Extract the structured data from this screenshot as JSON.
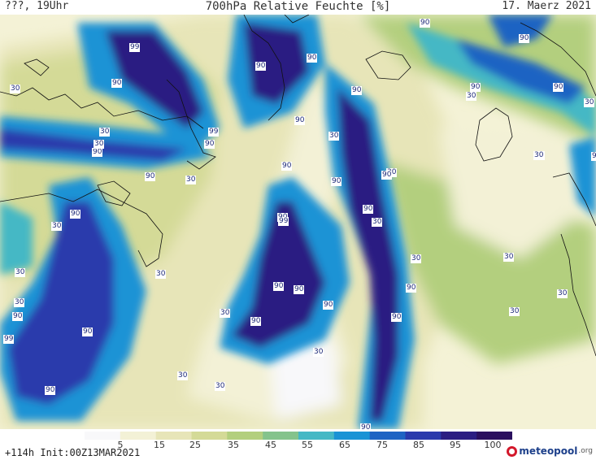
{
  "header": {
    "left": "???, 19Uhr",
    "title": "700hPa Relative Feuchte [%]",
    "date": "17. Maerz 2021"
  },
  "colors": {
    "background": "#f4f2d6",
    "levels": [
      "#f8f8fa",
      "#f3f1d6",
      "#e7e5b8",
      "#d4da97",
      "#b3cf7e",
      "#84c38c",
      "#45b8c5",
      "#1a93d5",
      "#1e63c3",
      "#2a3aac",
      "#2b1d82",
      "#2a0f5e"
    ],
    "coastline": "#111111",
    "label_text": "#1e2a78"
  },
  "colorbar": {
    "ticks": [
      "5",
      "15",
      "25",
      "35",
      "45",
      "55",
      "65",
      "75",
      "85",
      "95",
      "100"
    ]
  },
  "contour_labels": [
    {
      "t": "99"
    },
    {
      "t": "90"
    },
    {
      "t": "30"
    },
    {
      "t": "90"
    },
    {
      "t": "99"
    },
    {
      "t": "90"
    },
    {
      "t": "30"
    },
    {
      "t": "90"
    },
    {
      "t": "30"
    },
    {
      "t": "90"
    },
    {
      "t": "90"
    },
    {
      "t": "30"
    },
    {
      "t": "30"
    },
    {
      "t": "90"
    },
    {
      "t": "90"
    },
    {
      "t": "90"
    },
    {
      "t": "90"
    },
    {
      "t": "90"
    },
    {
      "t": "30"
    },
    {
      "t": "90"
    },
    {
      "t": "90"
    },
    {
      "t": "30"
    },
    {
      "t": "90"
    },
    {
      "t": "99"
    },
    {
      "t": "30"
    },
    {
      "t": "90"
    },
    {
      "t": "90"
    },
    {
      "t": "90"
    },
    {
      "t": "30"
    },
    {
      "t": "90"
    },
    {
      "t": "90"
    },
    {
      "t": "90"
    },
    {
      "t": "30"
    },
    {
      "t": "30"
    },
    {
      "t": "30"
    },
    {
      "t": "90"
    },
    {
      "t": "30"
    },
    {
      "t": "90"
    },
    {
      "t": "99"
    },
    {
      "t": "90"
    },
    {
      "t": "30"
    },
    {
      "t": "30"
    },
    {
      "t": "30"
    },
    {
      "t": "30"
    },
    {
      "t": "90"
    },
    {
      "t": "90"
    },
    {
      "t": "90"
    },
    {
      "t": "30"
    },
    {
      "t": "30"
    },
    {
      "t": "90"
    },
    {
      "t": "30"
    },
    {
      "t": "90"
    },
    {
      "t": "30"
    },
    {
      "t": "30"
    },
    {
      "t": "30"
    },
    {
      "t": "90"
    }
  ],
  "footer": {
    "init": "+114h Init:00Z13MAR2021",
    "logo": "meteopool",
    "logo_suffix": ".org"
  }
}
